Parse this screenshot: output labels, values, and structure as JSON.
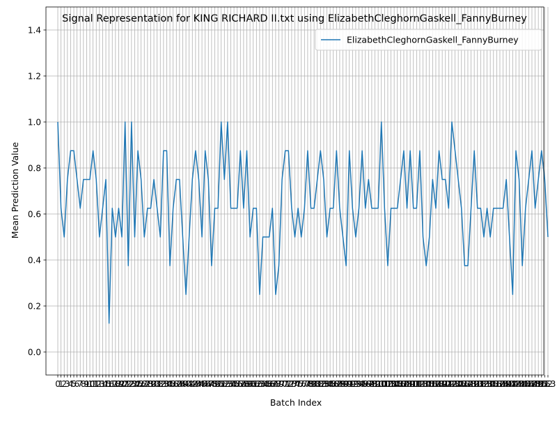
{
  "chart_data": {
    "type": "line",
    "title": "Signal Representation for KING RICHARD II.txt using ElizabethCleghornGaskell_FannyBurney",
    "xlabel": "Batch Index",
    "ylabel": "Mean Prediction Value",
    "xlim": [
      -3.7,
      151.7
    ],
    "ylim": [
      -0.1,
      1.5
    ],
    "yticks": [
      0.0,
      0.2,
      0.4,
      0.6,
      0.8,
      1.0,
      1.2,
      1.4
    ],
    "ytick_labels": [
      "0.0",
      "0.2",
      "0.4",
      "0.6",
      "0.8",
      "1.0",
      "1.2",
      "1.4"
    ],
    "x_tick_step": 1,
    "grid": true,
    "legend": "top-right",
    "color": "#1f77b4",
    "series": [
      {
        "name": "ElizabethCleghornGaskell_FannyBurney",
        "x_start": 0,
        "values": [
          1.0,
          0.625,
          0.5,
          0.75,
          0.875,
          0.875,
          0.75,
          0.625,
          0.75,
          0.75,
          0.75,
          0.875,
          0.75,
          0.5,
          0.625,
          0.75,
          0.125,
          0.625,
          0.5,
          0.625,
          0.5,
          1.0,
          0.375,
          1.0,
          0.5,
          0.875,
          0.75,
          0.5,
          0.625,
          0.625,
          0.75,
          0.625,
          0.5,
          0.875,
          0.875,
          0.375,
          0.625,
          0.75,
          0.75,
          0.5,
          0.25,
          0.5,
          0.75,
          0.875,
          0.75,
          0.5,
          0.875,
          0.75,
          0.375,
          0.625,
          0.625,
          1.0,
          0.75,
          1.0,
          0.625,
          0.625,
          0.625,
          0.875,
          0.625,
          0.875,
          0.5,
          0.625,
          0.625,
          0.25,
          0.5,
          0.5,
          0.5,
          0.625,
          0.25,
          0.375,
          0.75,
          0.875,
          0.875,
          0.625,
          0.5,
          0.625,
          0.5,
          0.625,
          0.875,
          0.625,
          0.625,
          0.75,
          0.875,
          0.75,
          0.5,
          0.625,
          0.625,
          0.875,
          0.625,
          0.5,
          0.375,
          0.875,
          0.625,
          0.5,
          0.625,
          0.875,
          0.625,
          0.75,
          0.625,
          0.625,
          0.625,
          1.0,
          0.625,
          0.375,
          0.625,
          0.625,
          0.625,
          0.75,
          0.875,
          0.625,
          0.875,
          0.625,
          0.625,
          0.875,
          0.5,
          0.375,
          0.5,
          0.75,
          0.625,
          0.875,
          0.75,
          0.75,
          0.625,
          1.0,
          0.875,
          0.75,
          0.625,
          0.375,
          0.375,
          0.625,
          0.875,
          0.625,
          0.625,
          0.5,
          0.625,
          0.5,
          0.625,
          0.625,
          0.625,
          0.625,
          0.75,
          0.5,
          0.25,
          0.875,
          0.75,
          0.375,
          0.625,
          0.75,
          0.875,
          0.625,
          0.75,
          0.875,
          0.75,
          0.5
        ]
      }
    ]
  }
}
